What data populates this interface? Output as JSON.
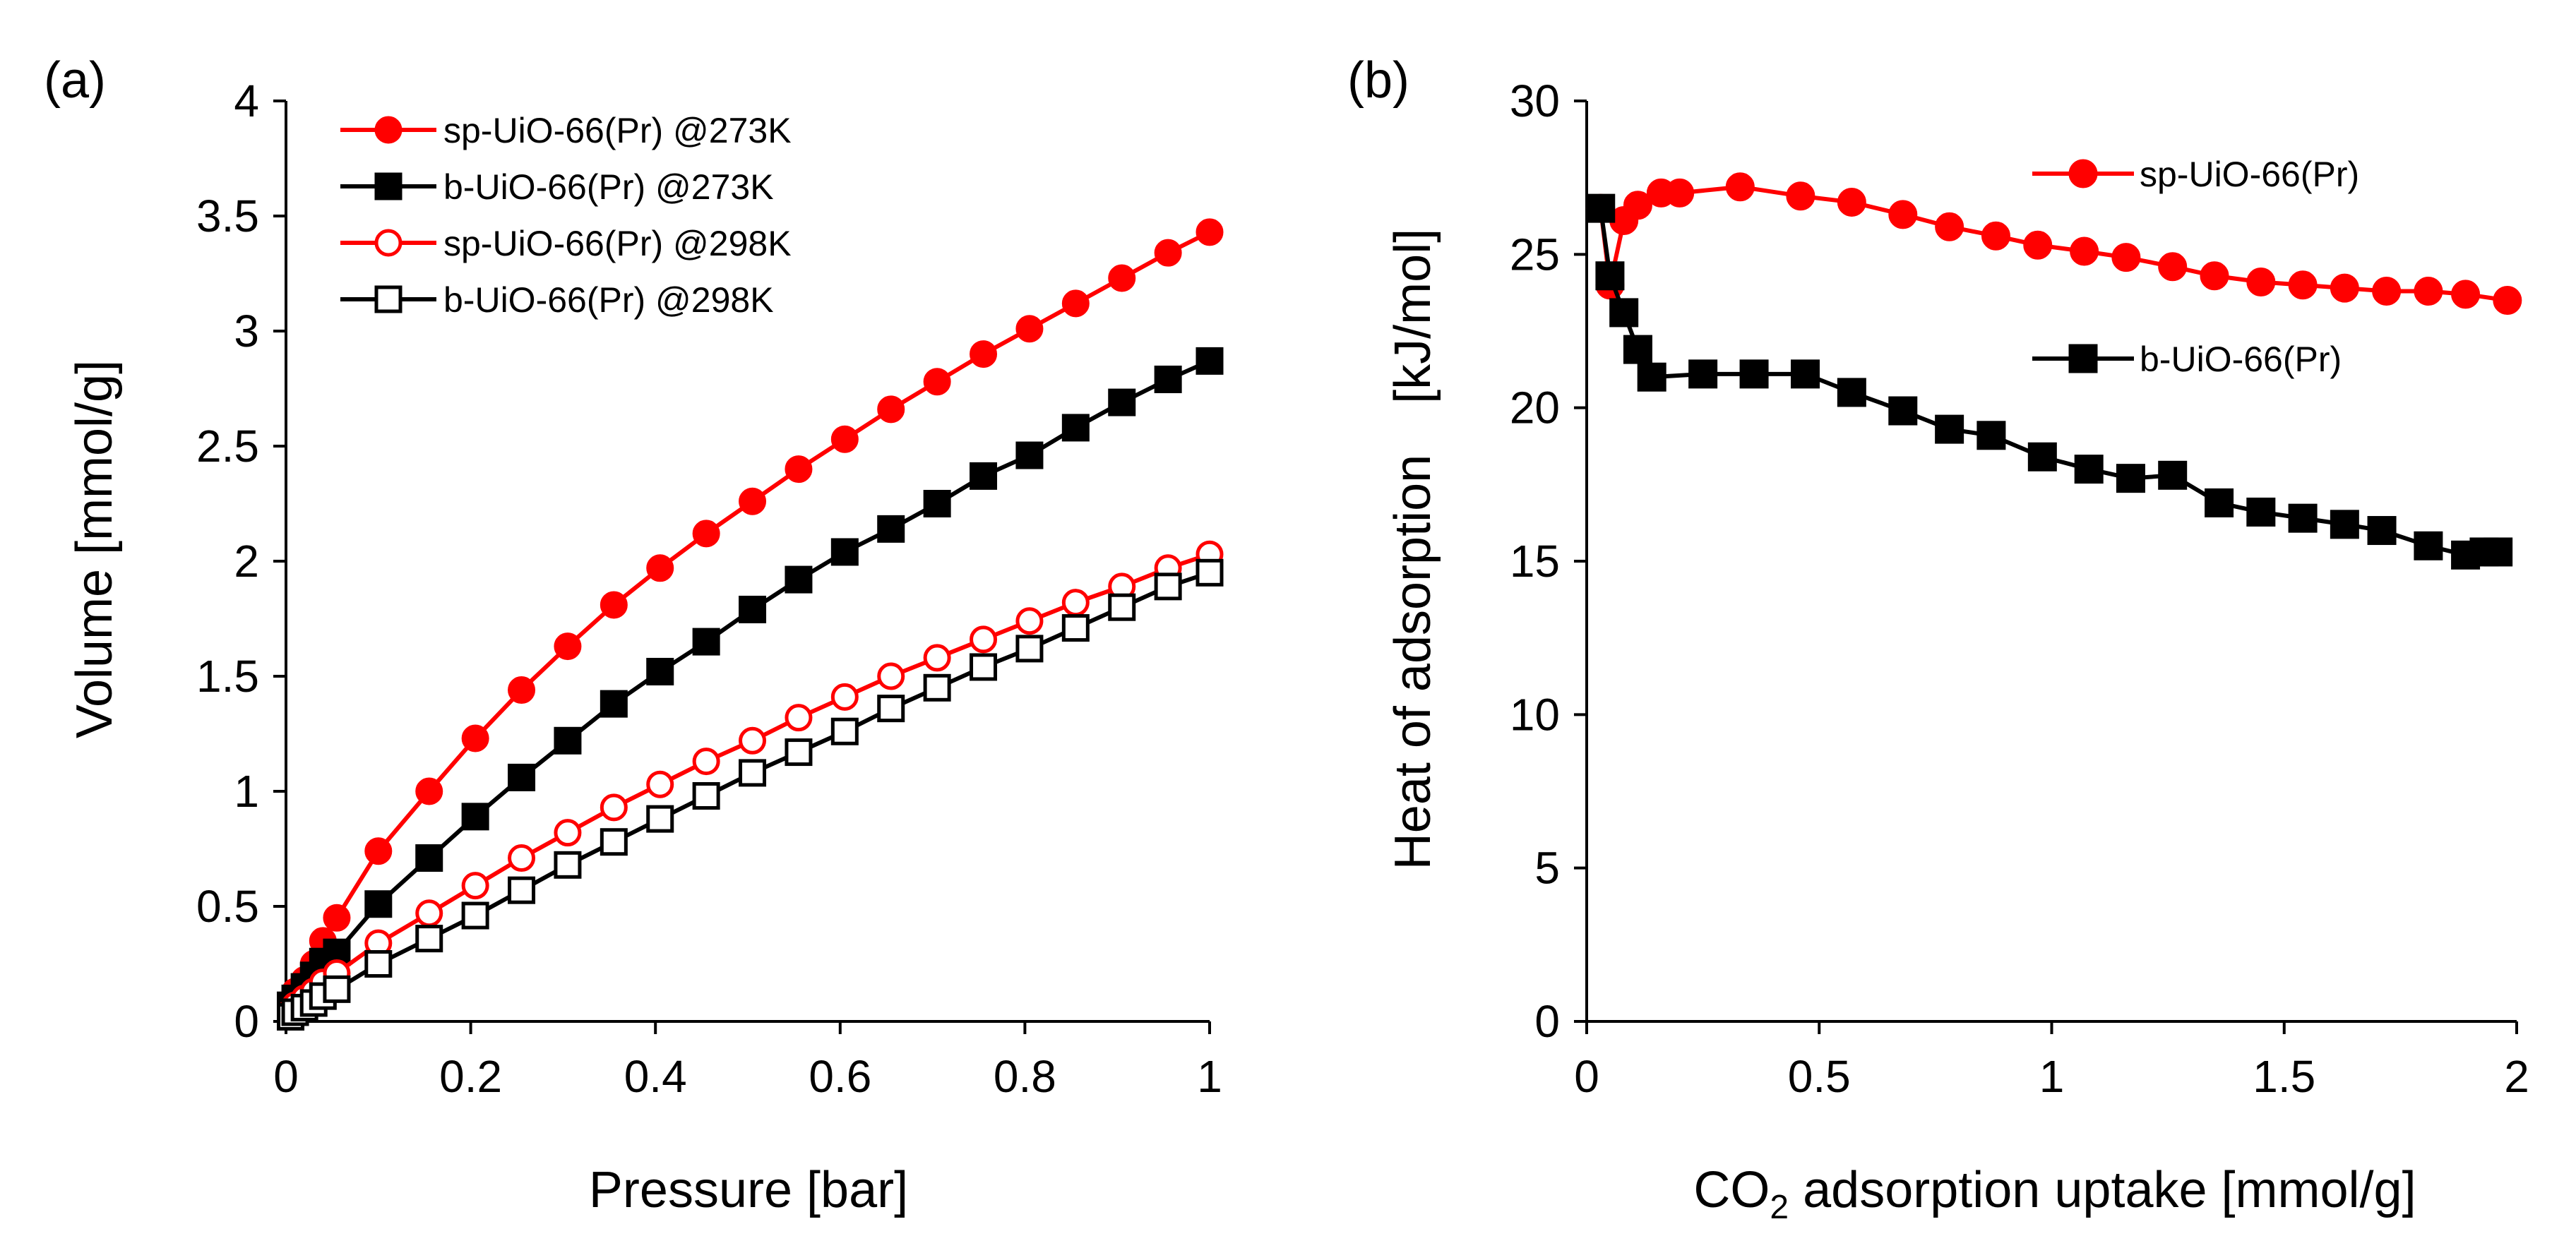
{
  "figure": {
    "colors": {
      "red": "#ff0000",
      "black": "#000000"
    }
  },
  "chart_data": [
    {
      "type": "line",
      "panel_label": "(a)",
      "title": "",
      "xlabel": "Pressure [bar]",
      "ylabel": "Volume [mmol/g]",
      "xlim": [
        0,
        1
      ],
      "ylim": [
        0,
        4
      ],
      "xticks": [
        0,
        0.2,
        0.4,
        0.6,
        0.8,
        1
      ],
      "yticks": [
        0,
        0.5,
        1,
        1.5,
        2,
        2.5,
        3,
        3.5,
        4
      ],
      "xtick_labels": [
        "0",
        "0.2",
        "0.4",
        "0.6",
        "0.8",
        "1"
      ],
      "ytick_labels": [
        "0",
        "0.5",
        "1",
        "1.5",
        "2",
        "2.5",
        "3",
        "3.5",
        "4"
      ],
      "grid": false,
      "legend_position": "top-left",
      "series": [
        {
          "name": "sp-UiO-66(Pr) @273K",
          "color": "#ff0000",
          "marker": "circle",
          "filled": true,
          "x": [
            0.005,
            0.01,
            0.02,
            0.03,
            0.04,
            0.055,
            0.1,
            0.155,
            0.205,
            0.255,
            0.305,
            0.355,
            0.405,
            0.455,
            0.505,
            0.555,
            0.605,
            0.655,
            0.705,
            0.755,
            0.805,
            0.855,
            0.905,
            0.955,
            1.0
          ],
          "y": [
            0.08,
            0.13,
            0.18,
            0.25,
            0.35,
            0.45,
            0.74,
            1.0,
            1.23,
            1.44,
            1.63,
            1.81,
            1.97,
            2.12,
            2.26,
            2.4,
            2.53,
            2.66,
            2.78,
            2.9,
            3.01,
            3.12,
            3.23,
            3.34,
            3.43
          ]
        },
        {
          "name": "b-UiO-66(Pr) @273K",
          "color": "#000000",
          "marker": "square",
          "filled": true,
          "x": [
            0.005,
            0.01,
            0.02,
            0.03,
            0.04,
            0.055,
            0.1,
            0.155,
            0.205,
            0.255,
            0.305,
            0.355,
            0.405,
            0.455,
            0.505,
            0.555,
            0.605,
            0.655,
            0.705,
            0.755,
            0.805,
            0.855,
            0.905,
            0.955,
            1.0
          ],
          "y": [
            0.07,
            0.1,
            0.15,
            0.2,
            0.26,
            0.3,
            0.51,
            0.71,
            0.89,
            1.06,
            1.22,
            1.38,
            1.52,
            1.65,
            1.79,
            1.92,
            2.04,
            2.14,
            2.25,
            2.37,
            2.46,
            2.58,
            2.69,
            2.79,
            2.87
          ]
        },
        {
          "name": "sp-UiO-66(Pr) @298K",
          "color": "#ff0000",
          "marker": "circle",
          "filled": false,
          "x": [
            0.005,
            0.01,
            0.02,
            0.03,
            0.04,
            0.055,
            0.1,
            0.155,
            0.205,
            0.255,
            0.305,
            0.355,
            0.405,
            0.455,
            0.505,
            0.555,
            0.605,
            0.655,
            0.705,
            0.755,
            0.805,
            0.855,
            0.905,
            0.955,
            1.0
          ],
          "y": [
            0.04,
            0.07,
            0.1,
            0.13,
            0.17,
            0.21,
            0.34,
            0.47,
            0.59,
            0.71,
            0.82,
            0.93,
            1.03,
            1.13,
            1.22,
            1.32,
            1.41,
            1.5,
            1.58,
            1.66,
            1.74,
            1.82,
            1.89,
            1.97,
            2.03
          ]
        },
        {
          "name": "b-UiO-66(Pr) @298K",
          "color": "#000000",
          "marker": "square",
          "filled": false,
          "x": [
            0.005,
            0.01,
            0.02,
            0.03,
            0.04,
            0.055,
            0.1,
            0.155,
            0.205,
            0.255,
            0.305,
            0.355,
            0.405,
            0.455,
            0.505,
            0.555,
            0.605,
            0.655,
            0.705,
            0.755,
            0.805,
            0.855,
            0.905,
            0.955,
            1.0
          ],
          "y": [
            0.02,
            0.04,
            0.06,
            0.08,
            0.11,
            0.14,
            0.25,
            0.36,
            0.46,
            0.57,
            0.68,
            0.78,
            0.88,
            0.98,
            1.08,
            1.17,
            1.26,
            1.36,
            1.45,
            1.54,
            1.62,
            1.71,
            1.8,
            1.89,
            1.95
          ]
        }
      ]
    },
    {
      "type": "line",
      "panel_label": "(b)",
      "title": "",
      "xlabel": "CO",
      "xlabel_subscript": "2",
      "xlabel_suffix": " adsorption uptake [mmol/g]",
      "ylabel": "Heat of adsorption　[kJ/mol]",
      "xlim": [
        0,
        2
      ],
      "ylim": [
        0,
        30
      ],
      "xticks": [
        0,
        0.5,
        1,
        1.5,
        2
      ],
      "yticks": [
        0,
        5,
        10,
        15,
        20,
        25,
        30
      ],
      "xtick_labels": [
        "0",
        "0.5",
        "1",
        "1.5",
        "2"
      ],
      "ytick_labels": [
        "0",
        "5",
        "10",
        "15",
        "20",
        "25",
        "30"
      ],
      "grid": false,
      "legend_position": "right (inline)",
      "series": [
        {
          "name": "sp-UiO-66(Pr)",
          "color": "#ff0000",
          "marker": "circle",
          "filled": true,
          "x": [
            0.03,
            0.05,
            0.08,
            0.11,
            0.16,
            0.2,
            0.33,
            0.46,
            0.57,
            0.68,
            0.78,
            0.88,
            0.97,
            1.07,
            1.16,
            1.26,
            1.35,
            1.45,
            1.54,
            1.63,
            1.72,
            1.81,
            1.89,
            1.98
          ],
          "y": [
            26.5,
            24.0,
            26.1,
            26.6,
            27.0,
            27.0,
            27.2,
            26.9,
            26.7,
            26.3,
            25.9,
            25.6,
            25.3,
            25.1,
            24.9,
            24.6,
            24.3,
            24.1,
            24.0,
            23.9,
            23.8,
            23.8,
            23.7,
            23.5
          ]
        },
        {
          "name": "b-UiO-66(Pr)",
          "color": "#000000",
          "marker": "square",
          "filled": true,
          "x": [
            0.03,
            0.05,
            0.08,
            0.11,
            0.14,
            0.25,
            0.36,
            0.47,
            0.57,
            0.68,
            0.78,
            0.87,
            0.98,
            1.08,
            1.17,
            1.26,
            1.36,
            1.45,
            1.54,
            1.63,
            1.71,
            1.81,
            1.89,
            1.93,
            1.96
          ],
          "y": [
            26.5,
            24.3,
            23.1,
            21.9,
            21.0,
            21.1,
            21.1,
            21.1,
            20.5,
            19.9,
            19.3,
            19.1,
            18.4,
            18.0,
            17.7,
            17.8,
            16.9,
            16.6,
            16.4,
            16.2,
            16.0,
            15.5,
            15.2,
            15.3,
            15.3
          ]
        }
      ]
    }
  ]
}
